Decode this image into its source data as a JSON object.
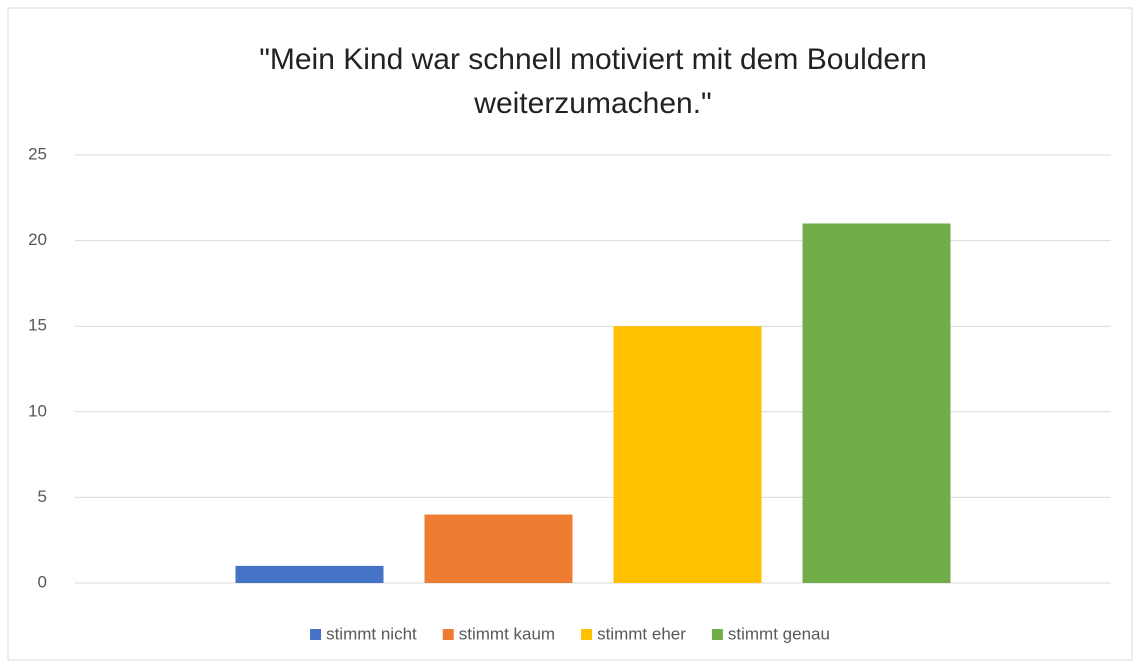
{
  "chart_data": {
    "type": "bar",
    "title": "\"Mein Kind war schnell motiviert mit dem Bouldern weiterzumachen.\"",
    "categories": [
      null
    ],
    "series": [
      {
        "name": "stimmt nicht",
        "color": "#4472c4",
        "values": [
          1
        ]
      },
      {
        "name": "stimmt kaum",
        "color": "#ed7d31",
        "values": [
          4
        ]
      },
      {
        "name": "stimmt eher",
        "color": "#ffc000",
        "values": [
          15
        ]
      },
      {
        "name": "stimmt genau",
        "color": "#70ad47",
        "values": [
          21
        ]
      }
    ],
    "ylim": [
      0,
      25
    ],
    "yticks": [
      0,
      5,
      10,
      15,
      20,
      25
    ],
    "grid": true,
    "legend": "bottom"
  }
}
